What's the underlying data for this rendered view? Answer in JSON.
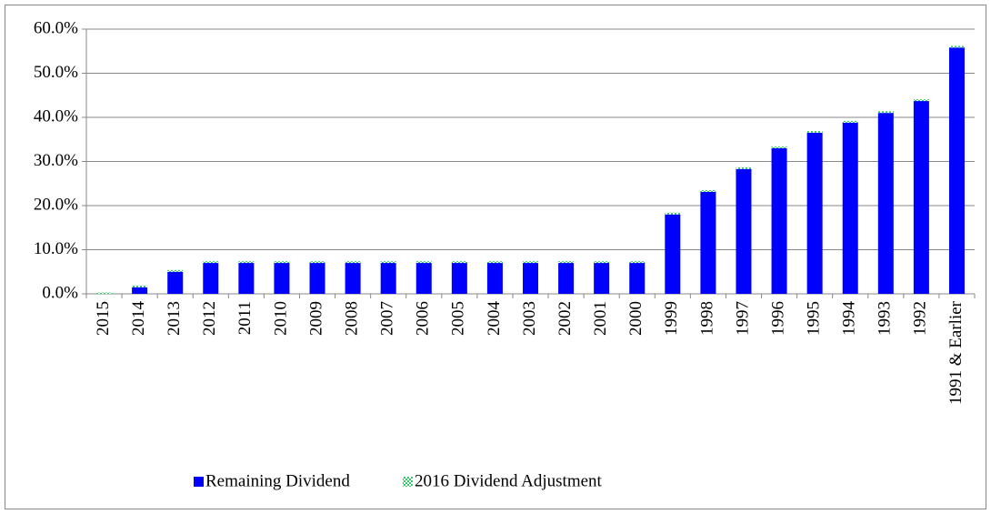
{
  "chart_data": {
    "type": "stacked-bar",
    "categories": [
      "2015",
      "2014",
      "2013",
      "2012",
      "2011",
      "2010",
      "2009",
      "2008",
      "2007",
      "2006",
      "2005",
      "2004",
      "2003",
      "2002",
      "2001",
      "2000",
      "1999",
      "1998",
      "1997",
      "1996",
      "1995",
      "1994",
      "1993",
      "1992",
      "1991 & Earlier"
    ],
    "series": [
      {
        "name": "Remaining Dividend",
        "color": "#0000ff",
        "values": [
          0,
          1.5,
          5.0,
          7.0,
          7.0,
          7.0,
          7.0,
          7.0,
          7.0,
          7.0,
          7.0,
          7.0,
          7.0,
          7.0,
          7.0,
          7.0,
          18.0,
          23.1,
          28.3,
          33.0,
          36.5,
          38.8,
          41.0,
          43.7,
          55.8
        ]
      },
      {
        "name": "2016 Dividend Adjustment",
        "color": "#33cc66",
        "values": [
          0.3,
          0.4,
          0.4,
          0.4,
          0.4,
          0.4,
          0.4,
          0.4,
          0.4,
          0.4,
          0.4,
          0.4,
          0.4,
          0.4,
          0.4,
          0.4,
          0.4,
          0.4,
          0.4,
          0.4,
          0.4,
          0.4,
          0.4,
          0.4,
          0.4
        ]
      }
    ],
    "ylim": [
      0,
      60
    ],
    "yticks": [
      {
        "value": 0,
        "label": "0.0%"
      },
      {
        "value": 10,
        "label": "10.0%"
      },
      {
        "value": 20,
        "label": "20.0%"
      },
      {
        "value": 30,
        "label": "30.0%"
      },
      {
        "value": 40,
        "label": "40.0%"
      },
      {
        "value": 50,
        "label": "50.0%"
      },
      {
        "value": 60,
        "label": "60.0%"
      }
    ],
    "grid": true,
    "legend": "bottom"
  }
}
